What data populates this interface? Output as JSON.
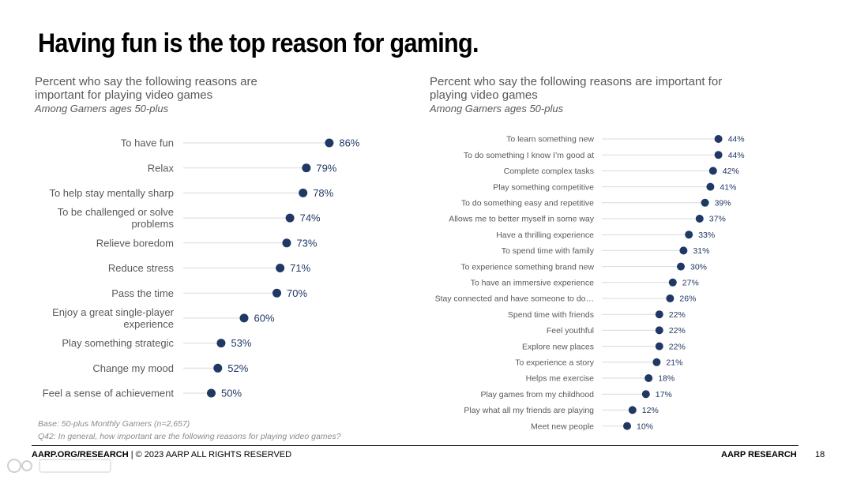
{
  "title": "Having fun is the top reason for gaming.",
  "left_panel": {
    "title_lines": [
      "Percent who say the following reasons are",
      "important for playing video games"
    ],
    "subtitle": "Among Gamers ages 50-plus"
  },
  "right_panel": {
    "title_lines": [
      "Percent who say the following reasons are important for",
      "playing video games"
    ],
    "subtitle": "Among Gamers ages 50-plus"
  },
  "notes": {
    "base": "Base: 50-plus Monthly Gamers (n=2,657)",
    "question": "Q42: In general, how important are the following reasons for playing video games?"
  },
  "footer": {
    "left_bold": "AARP.ORG/RESEARCH",
    "left_rest": " | © 2023 AARP ALL RIGHTS RESERVED",
    "right": "AARP RESEARCH",
    "page_number": "18"
  },
  "colors": {
    "dot": "#1f3864",
    "label": "#595959",
    "leader": "#d9d9d9"
  },
  "chart_data": [
    {
      "type": "dot",
      "title": "Percent who say the following reasons are important for playing video games",
      "subtitle": "Among Gamers ages 50-plus",
      "categories": [
        [
          "To have fun"
        ],
        [
          "Relax"
        ],
        [
          "To help stay mentally sharp"
        ],
        [
          "To be challenged or solve",
          "problems"
        ],
        [
          "Relieve boredom"
        ],
        [
          "Reduce stress"
        ],
        [
          "Pass the time"
        ],
        [
          "Enjoy a great single-player",
          "experience"
        ],
        [
          "Play something strategic"
        ],
        [
          "Change my mood"
        ],
        [
          "Feel a sense of achievement"
        ]
      ],
      "values": [
        86,
        79,
        78,
        74,
        73,
        71,
        70,
        60,
        53,
        52,
        50
      ],
      "value_labels": [
        "86%",
        "79%",
        "78%",
        "74%",
        "73%",
        "71%",
        "70%",
        "60%",
        "53%",
        "52%",
        "50%"
      ],
      "unit": "%",
      "xlim": [
        0,
        100
      ]
    },
    {
      "type": "dot",
      "title": "Percent who say the following reasons are important for playing video games",
      "subtitle": "Among Gamers ages 50-plus",
      "categories": [
        [
          "To learn something new"
        ],
        [
          "To do something I know I’m good at"
        ],
        [
          "Complete complex tasks"
        ],
        [
          "Play something competitive"
        ],
        [
          "To do something easy and repetitive"
        ],
        [
          "Allows me to better myself in some way"
        ],
        [
          "Have a thrilling experience"
        ],
        [
          "To spend time with family"
        ],
        [
          "To experience something brand new"
        ],
        [
          "To have an immersive experience"
        ],
        [
          "Stay connected and have someone to do…"
        ],
        [
          "Spend time with friends"
        ],
        [
          "Feel youthful"
        ],
        [
          "Explore new places"
        ],
        [
          "To experience a story"
        ],
        [
          "Helps me exercise"
        ],
        [
          "Play games from my childhood"
        ],
        [
          "Play what all my friends are playing"
        ],
        [
          "Meet new people"
        ]
      ],
      "values": [
        44,
        44,
        42,
        41,
        39,
        37,
        33,
        31,
        30,
        27,
        26,
        22,
        22,
        22,
        21,
        18,
        17,
        12,
        10
      ],
      "value_labels": [
        "44%",
        "44%",
        "42%",
        "41%",
        "39%",
        "37%",
        "33%",
        "31%",
        "30%",
        "27%",
        "26%",
        "22%",
        "22%",
        "22%",
        "21%",
        "18%",
        "17%",
        "12%",
        "10%"
      ],
      "unit": "%",
      "xlim": [
        0,
        50
      ]
    }
  ]
}
